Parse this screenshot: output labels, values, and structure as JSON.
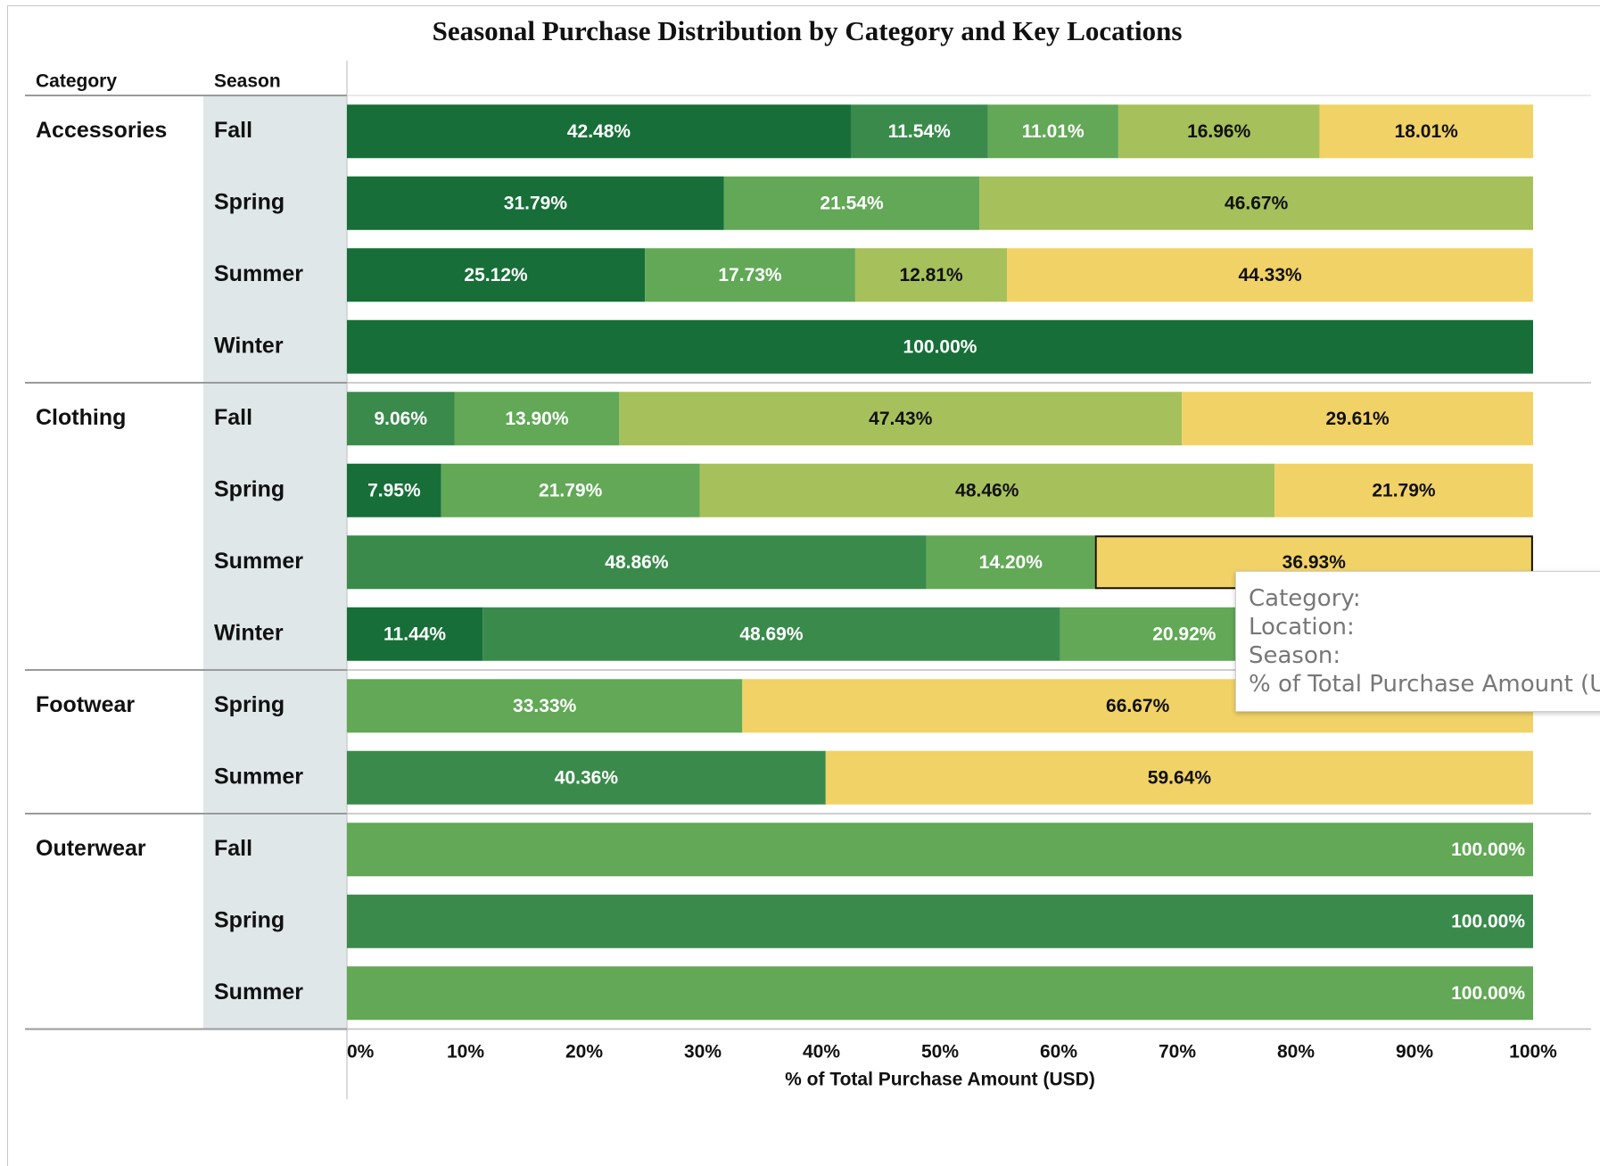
{
  "chart_data": {
    "type": "bar",
    "orientation": "horizontal",
    "stacking": "percent",
    "title": "Seasonal Purchase Distribution by Category and Key Locations",
    "header_category": "Category",
    "header_season": "Season",
    "xlabel": "% of Total Purchase Amount (USD)",
    "xlim": [
      0,
      100
    ],
    "x_ticks": [
      "0%",
      "10%",
      "20%",
      "30%",
      "40%",
      "50%",
      "60%",
      "70%",
      "80%",
      "90%",
      "100%"
    ],
    "colors": {
      "c1": "#176e38",
      "c2": "#3a8a4c",
      "c3": "#62a857",
      "c4": "#a6c05c",
      "c5": "#f1d266"
    },
    "label_colors": {
      "c1": "#ffffff",
      "c2": "#ffffff",
      "c3": "#ffffff",
      "c4": "#111111",
      "c5": "#111111"
    },
    "groups": [
      {
        "category": "Accessories",
        "rows": [
          {
            "season": "Fall",
            "segments": [
              {
                "value": 42.48,
                "label": "42.48%",
                "color": "c1"
              },
              {
                "value": 11.54,
                "label": "11.54%",
                "color": "c2"
              },
              {
                "value": 11.01,
                "label": "11.01%",
                "color": "c3"
              },
              {
                "value": 16.96,
                "label": "16.96%",
                "color": "c4"
              },
              {
                "value": 18.01,
                "label": "18.01%",
                "color": "c5"
              }
            ]
          },
          {
            "season": "Spring",
            "segments": [
              {
                "value": 31.79,
                "label": "31.79%",
                "color": "c1"
              },
              {
                "value": 21.54,
                "label": "21.54%",
                "color": "c3"
              },
              {
                "value": 46.67,
                "label": "46.67%",
                "color": "c4"
              }
            ]
          },
          {
            "season": "Summer",
            "segments": [
              {
                "value": 25.12,
                "label": "25.12%",
                "color": "c1"
              },
              {
                "value": 17.73,
                "label": "17.73%",
                "color": "c3"
              },
              {
                "value": 12.81,
                "label": "12.81%",
                "color": "c4"
              },
              {
                "value": 44.33,
                "label": "44.33%",
                "color": "c5"
              }
            ]
          },
          {
            "season": "Winter",
            "segments": [
              {
                "value": 100.0,
                "label": "100.00%",
                "color": "c1"
              }
            ]
          }
        ]
      },
      {
        "category": "Clothing",
        "rows": [
          {
            "season": "Fall",
            "segments": [
              {
                "value": 9.06,
                "label": "9.06%",
                "color": "c2"
              },
              {
                "value": 13.9,
                "label": "13.90%",
                "color": "c3"
              },
              {
                "value": 47.43,
                "label": "47.43%",
                "color": "c4"
              },
              {
                "value": 29.61,
                "label": "29.61%",
                "color": "c5"
              }
            ]
          },
          {
            "season": "Spring",
            "segments": [
              {
                "value": 7.95,
                "label": "7.95%",
                "color": "c1"
              },
              {
                "value": 21.79,
                "label": "21.79%",
                "color": "c3"
              },
              {
                "value": 48.46,
                "label": "48.46%",
                "color": "c4"
              },
              {
                "value": 21.79,
                "label": "21.79%",
                "color": "c5"
              }
            ]
          },
          {
            "season": "Summer",
            "segments": [
              {
                "value": 48.86,
                "label": "48.86%",
                "color": "c2"
              },
              {
                "value": 14.2,
                "label": "14.20%",
                "color": "c3"
              },
              {
                "value": 36.93,
                "label": "36.93%",
                "color": "c5",
                "selected": true
              }
            ]
          },
          {
            "season": "Winter",
            "segments": [
              {
                "value": 11.44,
                "label": "11.44%",
                "color": "c1"
              },
              {
                "value": 48.69,
                "label": "48.69%",
                "color": "c2"
              },
              {
                "value": 20.92,
                "label": "20.92%",
                "color": "c3"
              },
              {
                "value": 18.95,
                "label": "",
                "color": "c4"
              }
            ]
          }
        ]
      },
      {
        "category": "Footwear",
        "rows": [
          {
            "season": "Spring",
            "segments": [
              {
                "value": 33.33,
                "label": "33.33%",
                "color": "c3"
              },
              {
                "value": 66.67,
                "label": "66.67%",
                "color": "c5"
              }
            ]
          },
          {
            "season": "Summer",
            "segments": [
              {
                "value": 40.36,
                "label": "40.36%",
                "color": "c2"
              },
              {
                "value": 59.64,
                "label": "59.64%",
                "color": "c5"
              }
            ]
          }
        ]
      },
      {
        "category": "Outerwear",
        "rows": [
          {
            "season": "Fall",
            "segments": [
              {
                "value": 100.0,
                "label": "100.00%",
                "color": "c3",
                "label_align": "end"
              }
            ]
          },
          {
            "season": "Spring",
            "segments": [
              {
                "value": 100.0,
                "label": "100.00%",
                "color": "c2",
                "label_align": "end"
              }
            ]
          },
          {
            "season": "Summer",
            "segments": [
              {
                "value": 100.0,
                "label": "100.00%",
                "color": "c3",
                "label_align": "end"
              }
            ]
          }
        ]
      }
    ]
  },
  "tooltip": {
    "category_label": "Category:",
    "location_label": "Location:",
    "season_label": "Season:",
    "measure_label": "% of Total Purchase Amount (USD)"
  }
}
